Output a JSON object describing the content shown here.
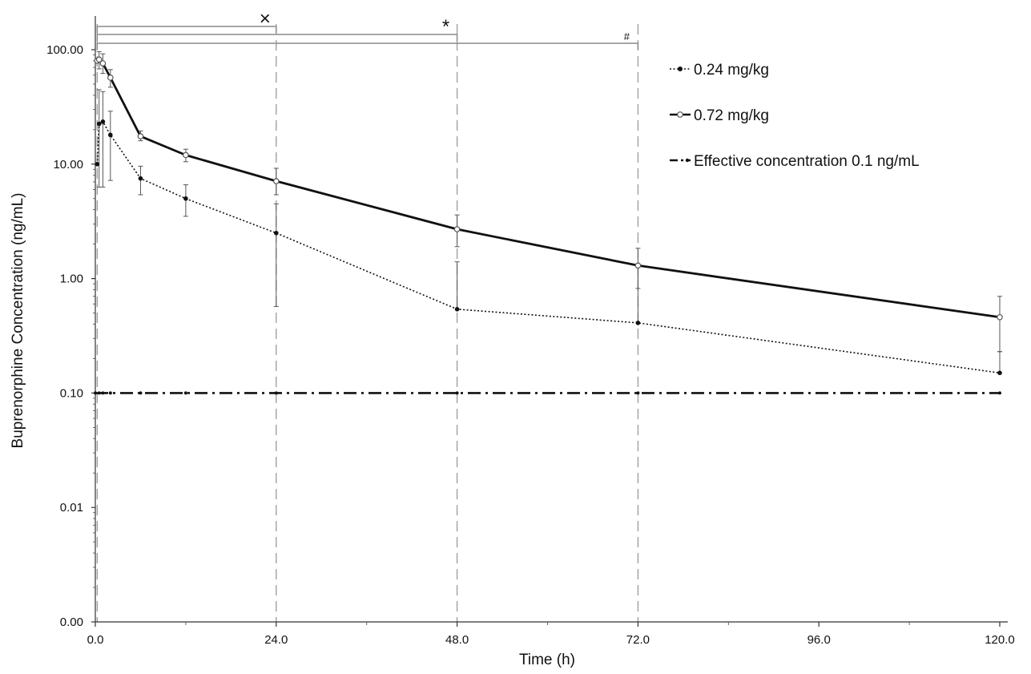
{
  "chart_data": {
    "type": "line",
    "title": "",
    "xlabel": "Time (h)",
    "ylabel": "Buprenorphine Concentration (ng/mL)",
    "x_scale": "linear",
    "y_scale": "log",
    "xlim": [
      0,
      120
    ],
    "ylim": [
      0.001,
      100
    ],
    "x_ticks": [
      0,
      24,
      48,
      72,
      96,
      120
    ],
    "x_tick_labels": [
      "0.0",
      "24.0",
      "48.0",
      "72.0",
      "96.0",
      "120.0"
    ],
    "y_ticks": [
      0.001,
      0.01,
      0.1,
      1,
      10,
      100
    ],
    "y_tick_labels": [
      "0.00",
      "0.01",
      "0.10",
      "1.00",
      "10.00",
      "100.00"
    ],
    "grid": false,
    "legend_position": "top-right",
    "series": [
      {
        "name": "0.24 mg/kg",
        "style": "dotted",
        "marker": "filled-circle",
        "color": "#111111",
        "x": [
          0.25,
          0.5,
          1,
          2,
          6,
          12,
          24,
          48,
          72,
          120
        ],
        "y": [
          10,
          22.5,
          23.5,
          18,
          7.5,
          5.0,
          2.5,
          0.54,
          0.41,
          0.15
        ],
        "err_low": [
          null,
          6.3,
          6.3,
          7.2,
          5.4,
          3.5,
          0.57,
          null,
          null,
          null
        ],
        "err_high": [
          null,
          44.7,
          43,
          29,
          9.6,
          6.6,
          4.5,
          1.4,
          1.28,
          0.23
        ]
      },
      {
        "name": "0.72 mg/kg",
        "style": "solid",
        "marker": "open-circle",
        "color": "#111111",
        "x": [
          0.25,
          0.5,
          1,
          2,
          6,
          12,
          24,
          48,
          72,
          120
        ],
        "y": [
          80,
          82,
          76,
          57,
          17.5,
          12,
          7.1,
          2.7,
          1.3,
          0.46
        ],
        "err_low": [
          null,
          68,
          62,
          47,
          16,
          10.5,
          5.4,
          1.9,
          0.82,
          0.23
        ],
        "err_high": [
          null,
          96,
          92,
          67,
          19.5,
          13.5,
          9.2,
          3.6,
          1.84,
          0.7
        ]
      },
      {
        "name": "Effective concentration 0.1 ng/mL",
        "style": "dash-dot",
        "marker": "dot",
        "color": "#111111",
        "x": [
          0,
          0.5,
          1,
          2,
          6,
          12,
          24,
          48,
          72,
          120
        ],
        "y": [
          0.1,
          0.1,
          0.1,
          0.1,
          0.1,
          0.1,
          0.1,
          0.1,
          0.1,
          0.1
        ]
      }
    ],
    "annotations": {
      "dashed_verticals_x": [
        0.25,
        24,
        48,
        72
      ],
      "brackets": [
        {
          "from_x": 0.25,
          "to_x": 24,
          "label": "×",
          "level": 0
        },
        {
          "from_x": 0.25,
          "to_x": 48,
          "label": "*",
          "level": 1
        },
        {
          "from_x": 0.25,
          "to_x": 72,
          "label": "#",
          "level": 2
        }
      ]
    }
  }
}
